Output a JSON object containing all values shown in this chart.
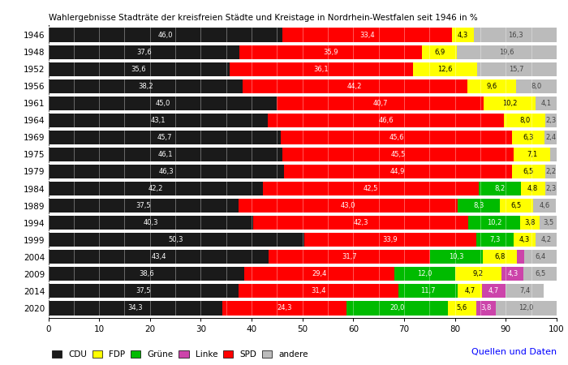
{
  "title": "Wahlergebnisse Stadträte der kreisfreien Städte und Kreistage in Nordrhein-Westfalen seit 1946 in %",
  "years": [
    1946,
    1948,
    1952,
    1956,
    1961,
    1964,
    1969,
    1975,
    1979,
    1984,
    1989,
    1994,
    1999,
    2004,
    2009,
    2014,
    2020
  ],
  "CDU": [
    46.0,
    37.6,
    35.6,
    38.2,
    45.0,
    43.1,
    45.7,
    46.1,
    46.3,
    42.2,
    37.5,
    40.3,
    50.3,
    43.4,
    38.6,
    37.5,
    34.3
  ],
  "SPD": [
    33.4,
    35.9,
    36.1,
    44.2,
    40.7,
    46.6,
    45.6,
    45.5,
    44.9,
    42.5,
    43.0,
    42.3,
    33.9,
    31.7,
    29.4,
    31.4,
    24.3
  ],
  "Gruene": [
    0.0,
    0.0,
    0.0,
    0.0,
    0.0,
    0.0,
    0.0,
    0.0,
    0.0,
    8.2,
    8.3,
    10.2,
    7.3,
    10.3,
    12.0,
    11.7,
    20.0
  ],
  "FDP": [
    4.3,
    6.9,
    12.6,
    9.6,
    10.2,
    8.0,
    6.3,
    7.1,
    6.5,
    4.8,
    6.5,
    3.8,
    4.3,
    6.8,
    9.2,
    4.7,
    5.6
  ],
  "Linke": [
    0.0,
    0.0,
    0.0,
    0.0,
    0.0,
    0.0,
    0.0,
    0.0,
    0.0,
    0.0,
    0.0,
    0.0,
    0.0,
    1.4,
    4.3,
    4.7,
    3.8
  ],
  "andere": [
    16.3,
    19.6,
    15.7,
    8.0,
    4.1,
    2.3,
    2.4,
    1.3,
    2.2,
    2.3,
    4.6,
    3.5,
    4.2,
    6.4,
    6.5,
    7.4,
    12.0
  ],
  "colors": {
    "CDU": "#1a1a1a",
    "SPD": "#ff0000",
    "Gruene": "#00bb00",
    "FDP": "#ffff00",
    "Linke": "#cc44aa",
    "andere": "#bbbbbb"
  },
  "legend_labels": [
    "CDU",
    "FDP",
    "Grüne",
    "Linke",
    "SPD",
    "andere"
  ],
  "xlim": [
    0,
    100
  ],
  "figsize": [
    7.0,
    4.5
  ],
  "dpi": 100
}
